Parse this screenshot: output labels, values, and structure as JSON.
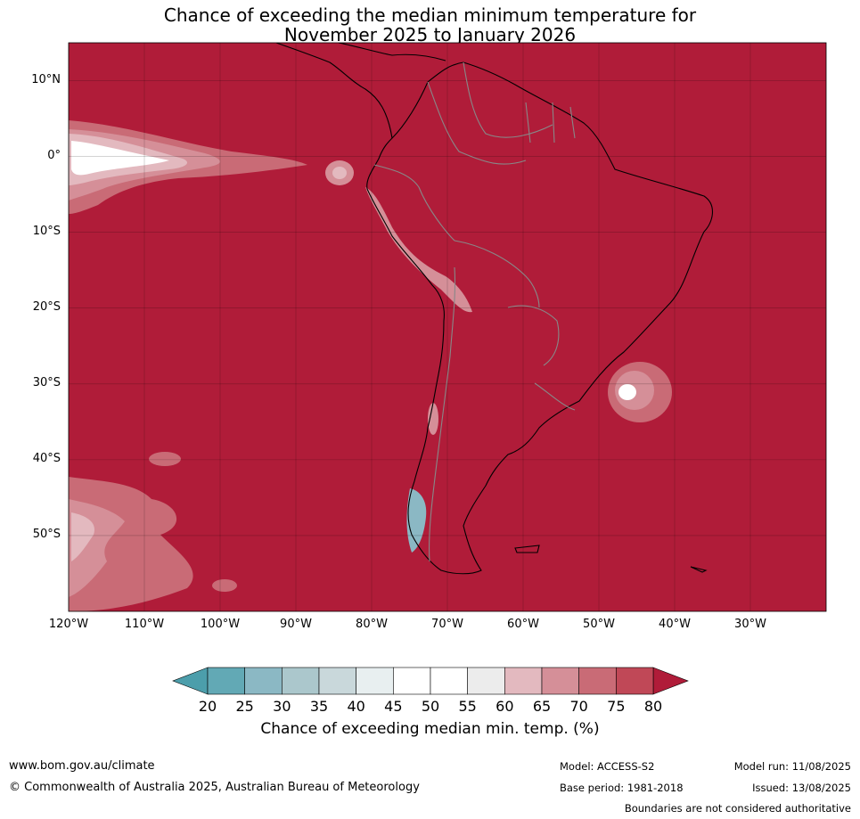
{
  "title": {
    "line1": "Chance of exceeding the median minimum temperature for",
    "line2": "November 2025 to January 2026"
  },
  "map": {
    "lon_range": [
      -120,
      -20
    ],
    "lat_range": [
      -60,
      15
    ],
    "background_color": "#b01c39",
    "lat_labels": [
      {
        "lat": 10,
        "label": "10°N"
      },
      {
        "lat": 0,
        "label": "0°"
      },
      {
        "lat": -10,
        "label": "10°S"
      },
      {
        "lat": -20,
        "label": "20°S"
      },
      {
        "lat": -30,
        "label": "30°S"
      },
      {
        "lat": -40,
        "label": "40°S"
      },
      {
        "lat": -50,
        "label": "50°S"
      }
    ],
    "lon_labels": [
      {
        "lon": -120,
        "label": "120°W"
      },
      {
        "lon": -110,
        "label": "110°W"
      },
      {
        "lon": -100,
        "label": "100°W"
      },
      {
        "lon": -90,
        "label": "90°W"
      },
      {
        "lon": -80,
        "label": "80°W"
      },
      {
        "lon": -70,
        "label": "70°W"
      },
      {
        "lon": -60,
        "label": "60°W"
      },
      {
        "lon": -50,
        "label": "50°W"
      },
      {
        "lon": -40,
        "label": "40°W"
      },
      {
        "lon": -30,
        "label": "30°W"
      }
    ]
  },
  "colorbar": {
    "title": "Chance of exceeding median min. temp. (%)",
    "ticks": [
      "20",
      "25",
      "30",
      "35",
      "40",
      "45",
      "50",
      "55",
      "60",
      "65",
      "70",
      "75",
      "80"
    ],
    "colors": [
      "#62a9b5",
      "#8bb8c4",
      "#abc7cc",
      "#c9d8db",
      "#e8eff0",
      "#ffffff",
      "#ffffff",
      "#ececec",
      "#e3b9bf",
      "#d58f98",
      "#c96b76",
      "#c04857"
    ],
    "low_extend_color": "#4c9eab",
    "high_extend_color": "#b01c39"
  },
  "footer": {
    "url": "www.bom.gov.au/climate",
    "copyright": "© Commonwealth of Australia 2025, Australian Bureau of Meteorology",
    "model": "Model: ACCESS-S2",
    "base_period": "Base period: 1981-2018",
    "model_run": "Model run: 11/08/2025",
    "issued": "Issued: 13/08/2025",
    "disclaimer": "Boundaries are not considered authoritative"
  }
}
